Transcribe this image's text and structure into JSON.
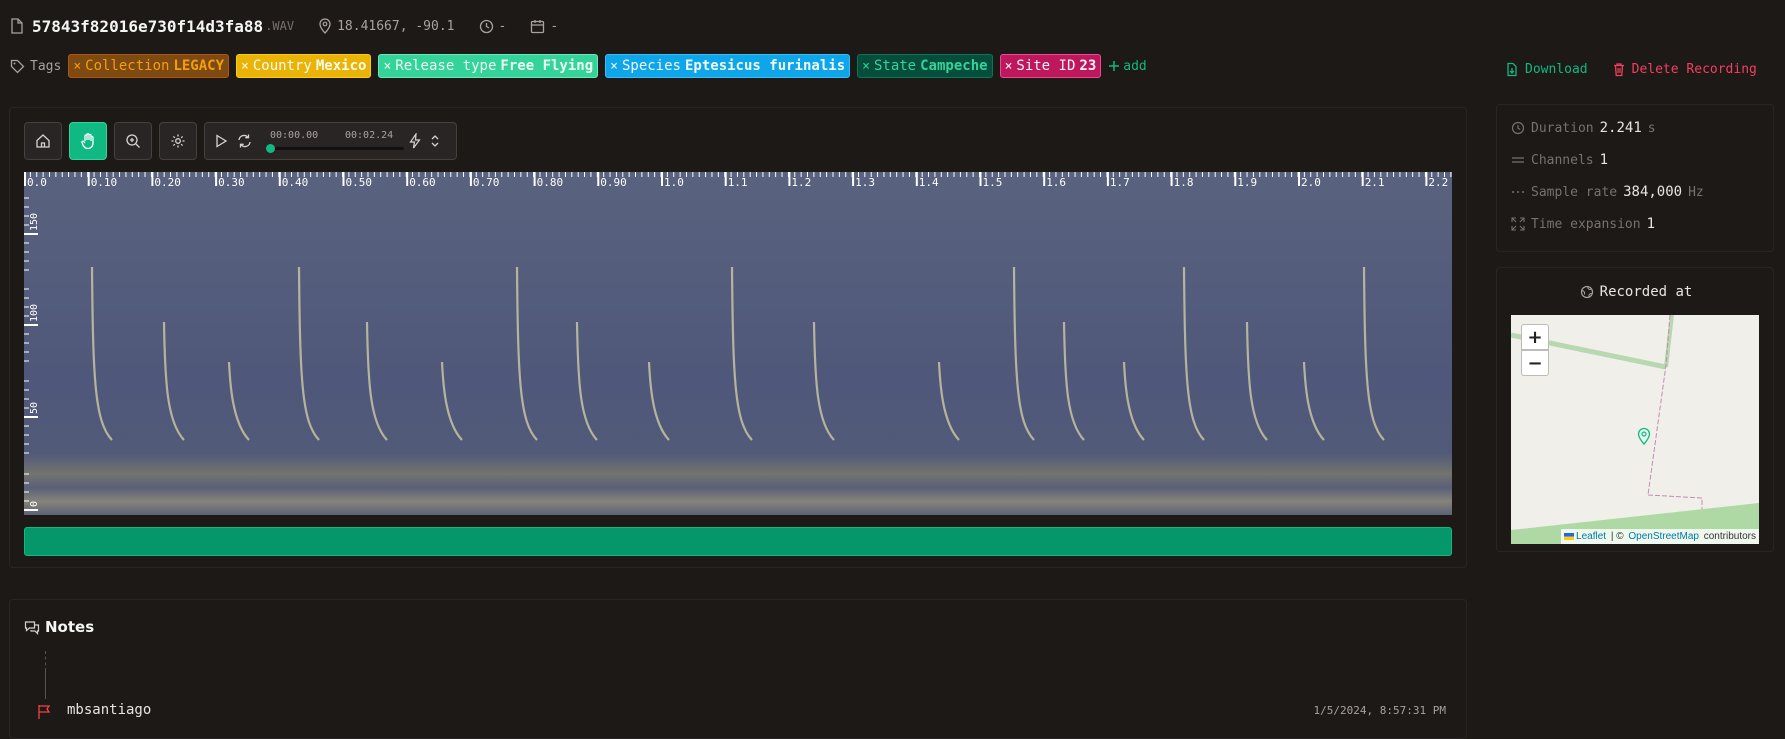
{
  "recording": {
    "filename": "57843f82016e730f14d3fa88",
    "extension": ".WAV",
    "coordinates": "18.41667, -90.1",
    "time": "-",
    "date": "-"
  },
  "tags": {
    "label": "Tags",
    "items": [
      {
        "key": "Collection",
        "value": "LEGACY",
        "bg": "#7c4a12",
        "border": "#b45309",
        "fg": "#f59e0b"
      },
      {
        "key": "Country",
        "value": "Mexico",
        "bg": "#eab308",
        "border": "#facc15",
        "fg": "#fffbeb"
      },
      {
        "key": "Release type",
        "value": "Free Flying",
        "bg": "#34d399",
        "border": "#6ee7b7",
        "fg": "#ecfdf5"
      },
      {
        "key": "Species",
        "value": "Eptesicus furinalis",
        "bg": "#0ea5e9",
        "border": "#38bdf8",
        "fg": "#f0f9ff"
      },
      {
        "key": "State",
        "value": "Campeche",
        "bg": "#064e3b",
        "border": "#047857",
        "fg": "#34d399"
      },
      {
        "key": "Site ID",
        "value": "23",
        "bg": "#be185d",
        "border": "#ec4899",
        "fg": "#fdf2f8"
      }
    ],
    "add_label": "add"
  },
  "actions": {
    "download": "Download",
    "delete": "Delete Recording"
  },
  "player": {
    "start_time": "00:00.00",
    "end_time": "00:02.24",
    "progress": 0
  },
  "spectrogram": {
    "time_ticks": [
      "0.0",
      "0.10",
      "0.20",
      "0.30",
      "0.40",
      "0.50",
      "0.60",
      "0.70",
      "0.80",
      "0.90",
      "1.0",
      "1.1",
      "1.2",
      "1.3",
      "1.4",
      "1.5",
      "1.6",
      "1.7",
      "1.8",
      "1.9",
      "2.0",
      "2.1",
      "2.2"
    ],
    "freq_ticks": [
      "150",
      "100",
      "50",
      "0"
    ]
  },
  "info": {
    "duration": {
      "label": "Duration",
      "value": "2.241",
      "unit": "s"
    },
    "channels": {
      "label": "Channels",
      "value": "1"
    },
    "sample_rate": {
      "label": "Sample rate",
      "value": "384,000",
      "unit": "Hz"
    },
    "time_expansion": {
      "label": "Time expansion",
      "value": "1"
    }
  },
  "map": {
    "title": "Recorded at",
    "zoom_in": "+",
    "zoom_out": "−",
    "attribution_leaflet": "Leaflet",
    "attribution_sep": " | © ",
    "attribution_osm": "OpenStreetMap",
    "attribution_tail": " contributors"
  },
  "notes": {
    "title": "Notes",
    "items": [
      {
        "user": "mbsantiago",
        "timestamp": "1/5/2024, 8:57:31 PM"
      }
    ]
  },
  "colors": {
    "accent": "#10b981",
    "danger": "#f43f5e"
  }
}
